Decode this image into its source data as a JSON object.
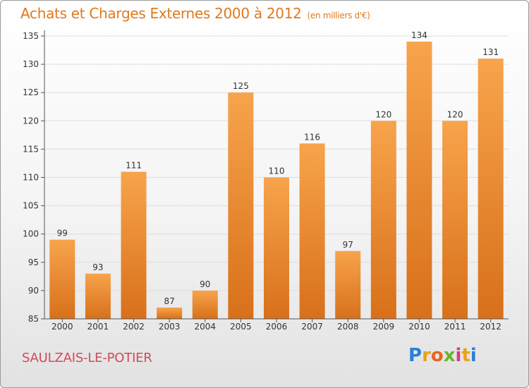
{
  "title": "Achats et Charges Externes 2000 à 2012",
  "unit": "(en milliers d'€)",
  "city": "SAULZAIS-LE-POTIER",
  "logo": {
    "letters": [
      "P",
      "r",
      "o",
      "x",
      "i",
      "t",
      "i"
    ],
    "colors": [
      "#2b7fd6",
      "#e8a21a",
      "#e8641c",
      "#6ab52a",
      "#d83a8a",
      "#e8a21a",
      "#2b7fd6"
    ]
  },
  "colors": {
    "bar_top": "#f7a44c",
    "bar_bottom": "#d8701a",
    "grid": "#dddddd",
    "axis": "#555555"
  },
  "chart_data": {
    "type": "bar",
    "categories": [
      "2000",
      "2001",
      "2002",
      "2003",
      "2004",
      "2005",
      "2006",
      "2007",
      "2008",
      "2009",
      "2010",
      "2011",
      "2012"
    ],
    "values": [
      99,
      93,
      111,
      87,
      90,
      125,
      110,
      116,
      97,
      120,
      134,
      120,
      131
    ],
    "title": "Achats et Charges Externes 2000 à 2012",
    "xlabel": "",
    "ylabel": "",
    "ylim": [
      85,
      135
    ],
    "yticks": [
      85,
      90,
      95,
      100,
      105,
      110,
      115,
      120,
      125,
      130,
      135
    ],
    "grid": true
  }
}
